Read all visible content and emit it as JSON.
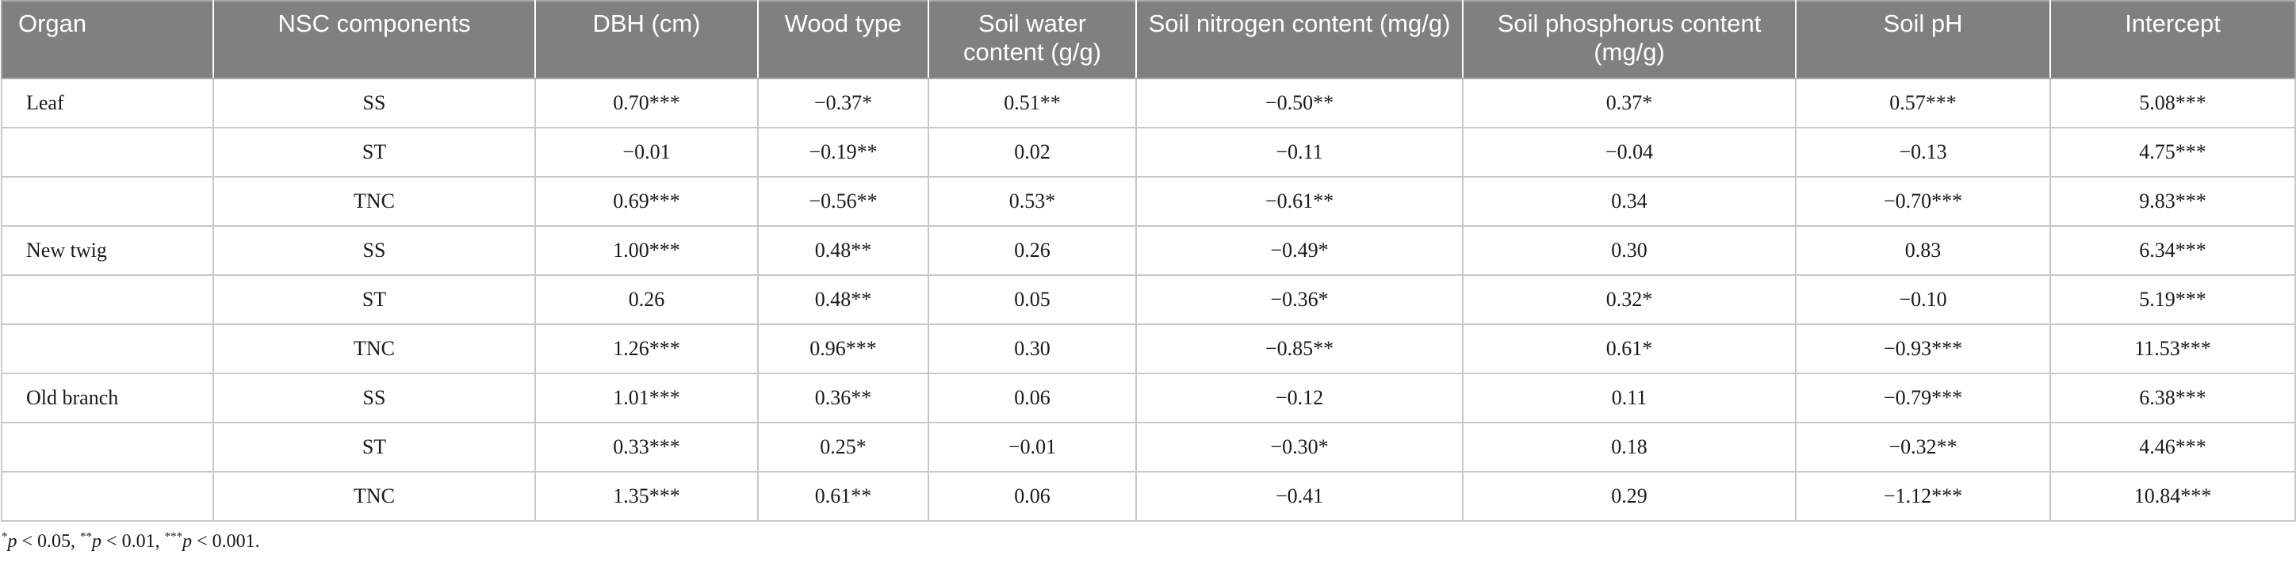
{
  "columns": [
    "Organ",
    "NSC components",
    "DBH (cm)",
    "Wood type",
    "Soil water content (g/g)",
    "Soil nitrogen content (mg/g)",
    "Soil phosphorus content (mg/g)",
    "Soil pH",
    "Intercept"
  ],
  "rows": [
    {
      "organ": "Leaf",
      "component": "SS",
      "dbh": "0.70***",
      "wood": "−0.37*",
      "water": "0.51**",
      "nitrogen": "−0.50**",
      "phosphorus": "0.37*",
      "ph": "0.57***",
      "intercept": "5.08***"
    },
    {
      "organ": "",
      "component": "ST",
      "dbh": "−0.01",
      "wood": "−0.19**",
      "water": "0.02",
      "nitrogen": "−0.11",
      "phosphorus": "−0.04",
      "ph": "−0.13",
      "intercept": "4.75***"
    },
    {
      "organ": "",
      "component": "TNC",
      "dbh": "0.69***",
      "wood": "−0.56**",
      "water": "0.53*",
      "nitrogen": "−0.61**",
      "phosphorus": "0.34",
      "ph": "−0.70***",
      "intercept": "9.83***"
    },
    {
      "organ": "New twig",
      "component": "SS",
      "dbh": "1.00***",
      "wood": "0.48**",
      "water": "0.26",
      "nitrogen": "−0.49*",
      "phosphorus": "0.30",
      "ph": "0.83",
      "intercept": "6.34***"
    },
    {
      "organ": "",
      "component": "ST",
      "dbh": "0.26",
      "wood": "0.48**",
      "water": "0.05",
      "nitrogen": "−0.36*",
      "phosphorus": "0.32*",
      "ph": "−0.10",
      "intercept": "5.19***"
    },
    {
      "organ": "",
      "component": "TNC",
      "dbh": "1.26***",
      "wood": "0.96***",
      "water": "0.30",
      "nitrogen": "−0.85**",
      "phosphorus": "0.61*",
      "ph": "−0.93***",
      "intercept": "11.53***"
    },
    {
      "organ": "Old branch",
      "component": "SS",
      "dbh": "1.01***",
      "wood": "0.36**",
      "water": "0.06",
      "nitrogen": "−0.12",
      "phosphorus": "0.11",
      "ph": "−0.79***",
      "intercept": "6.38***"
    },
    {
      "organ": "",
      "component": "ST",
      "dbh": "0.33***",
      "wood": "0.25*",
      "water": "−0.01",
      "nitrogen": "−0.30*",
      "phosphorus": "0.18",
      "ph": "−0.32**",
      "intercept": "4.46***"
    },
    {
      "organ": "",
      "component": "TNC",
      "dbh": "1.35***",
      "wood": "0.61**",
      "water": "0.06",
      "nitrogen": "−0.41",
      "phosphorus": "0.29",
      "ph": "−1.12***",
      "intercept": "10.84***"
    }
  ],
  "footnote": {
    "star1": "*",
    "p1": "p",
    "t1": " < 0.05, ",
    "star2": "**",
    "p2": "p",
    "t2": " < 0.01, ",
    "star3": "***",
    "p3": "p",
    "t3": " < 0.001."
  }
}
